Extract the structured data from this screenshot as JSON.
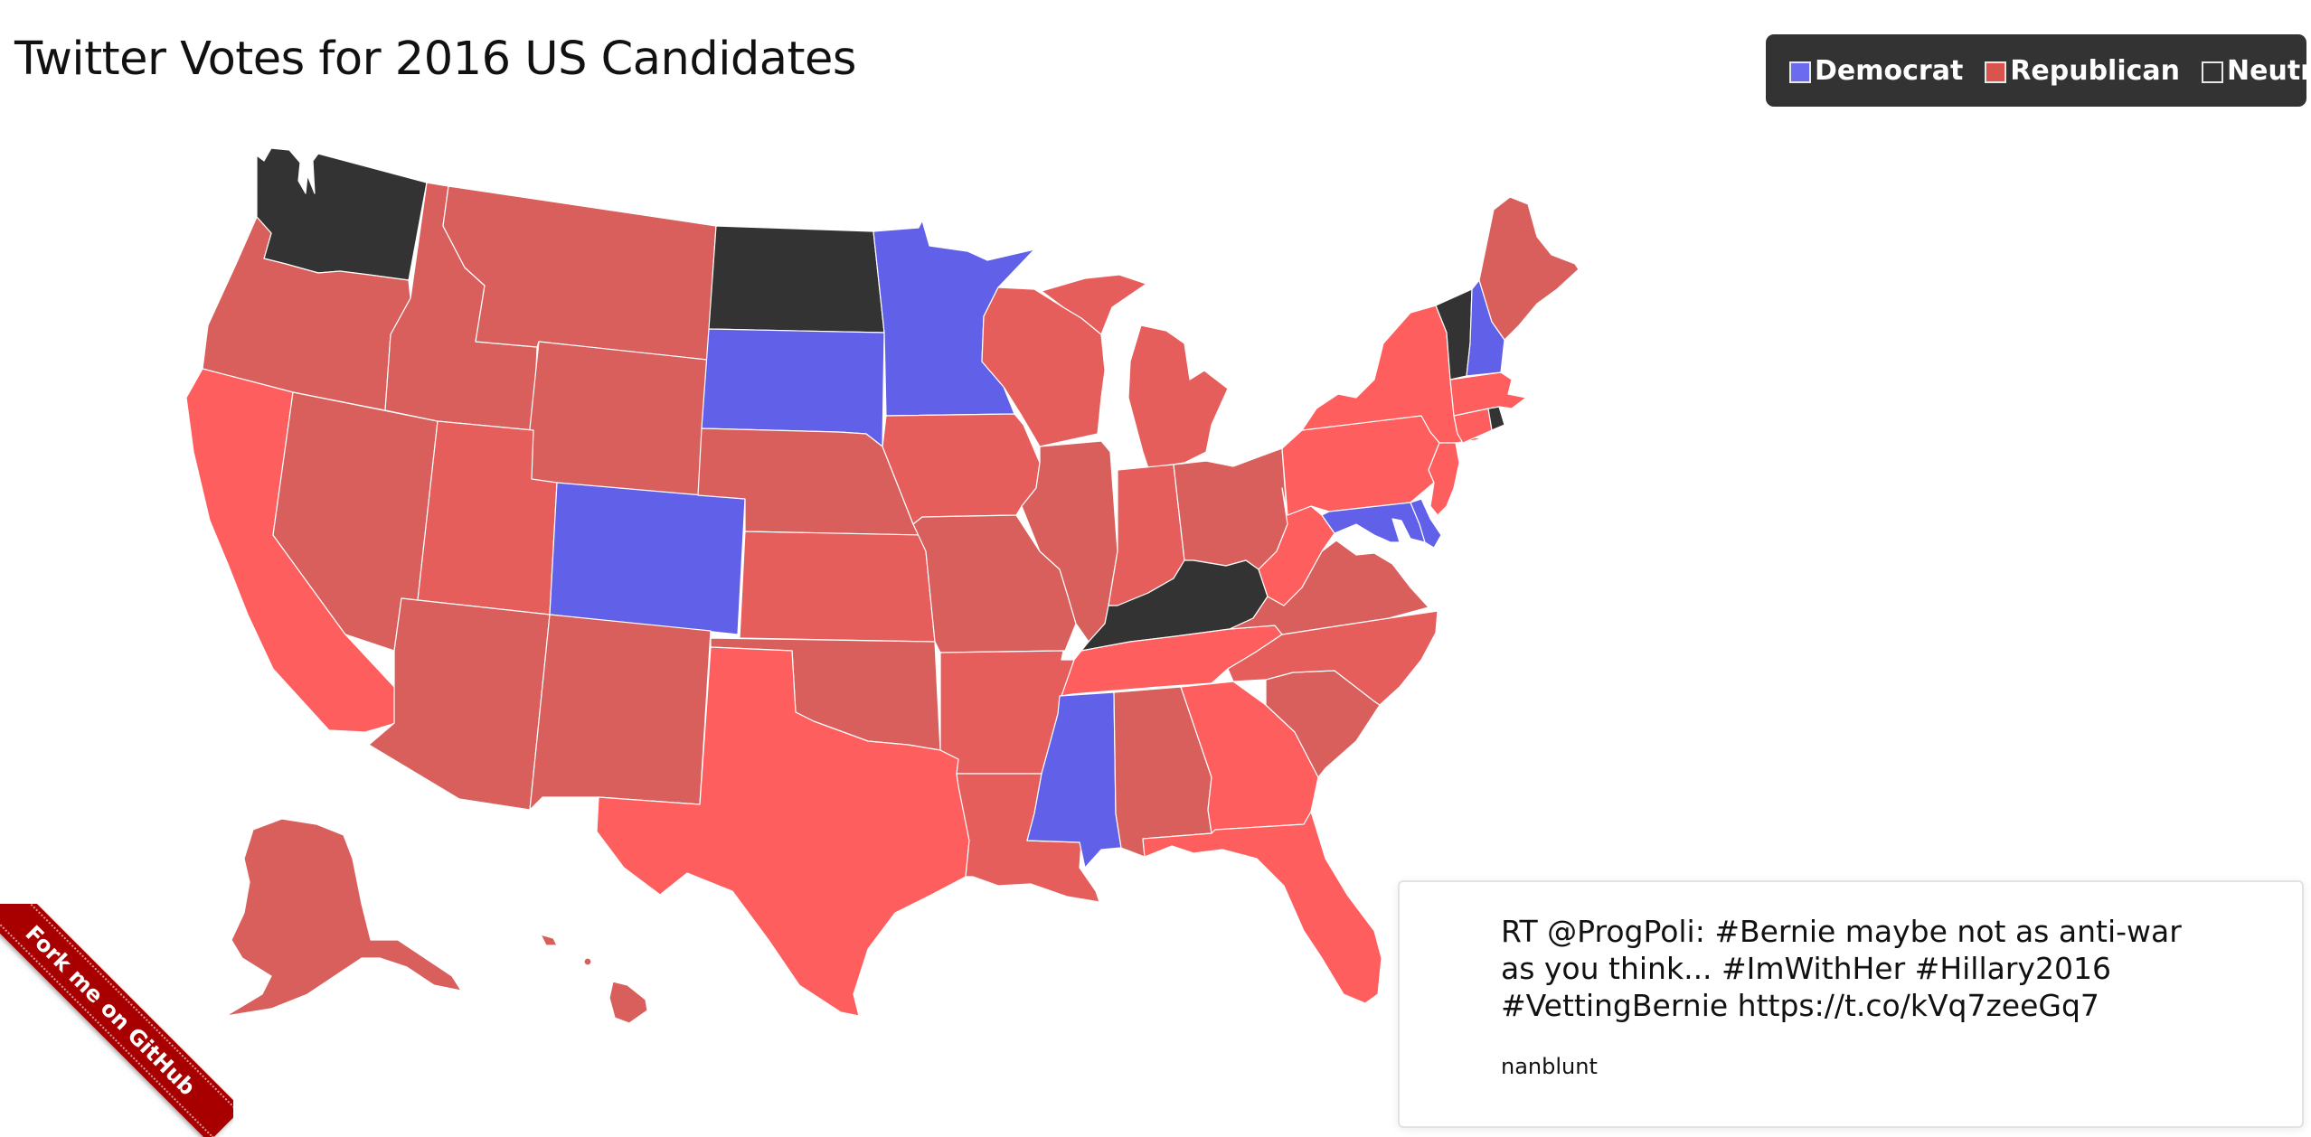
{
  "title": "Twitter Votes for 2016 US Candidates",
  "legend": {
    "items": [
      {
        "label": "Democrat",
        "color": "#6b6bf0"
      },
      {
        "label": "Republican",
        "color": "#d9534f"
      },
      {
        "label": "Neutral",
        "color": "#333333"
      }
    ]
  },
  "colors": {
    "democrat": "#6060e8",
    "republican_dark": "#d95f5c",
    "republican_mid": "#e55e5c",
    "republican_bright": "#ff5e5e",
    "neutral": "#333333"
  },
  "map": {
    "states": [
      {
        "name": "washington",
        "party": "neutral"
      },
      {
        "name": "oregon",
        "party": "republican"
      },
      {
        "name": "california",
        "party": "republican"
      },
      {
        "name": "nevada",
        "party": "republican"
      },
      {
        "name": "idaho",
        "party": "republican"
      },
      {
        "name": "montana",
        "party": "republican"
      },
      {
        "name": "wyoming",
        "party": "republican"
      },
      {
        "name": "utah",
        "party": "republican"
      },
      {
        "name": "arizona",
        "party": "republican"
      },
      {
        "name": "colorado",
        "party": "democrat"
      },
      {
        "name": "new-mexico",
        "party": "republican"
      },
      {
        "name": "north-dakota",
        "party": "neutral"
      },
      {
        "name": "south-dakota",
        "party": "democrat"
      },
      {
        "name": "nebraska",
        "party": "republican"
      },
      {
        "name": "kansas",
        "party": "republican"
      },
      {
        "name": "oklahoma",
        "party": "republican"
      },
      {
        "name": "texas",
        "party": "republican"
      },
      {
        "name": "minnesota",
        "party": "democrat"
      },
      {
        "name": "iowa",
        "party": "republican"
      },
      {
        "name": "missouri",
        "party": "republican"
      },
      {
        "name": "arkansas",
        "party": "republican"
      },
      {
        "name": "louisiana",
        "party": "republican"
      },
      {
        "name": "wisconsin",
        "party": "republican"
      },
      {
        "name": "illinois",
        "party": "republican"
      },
      {
        "name": "michigan",
        "party": "republican"
      },
      {
        "name": "indiana",
        "party": "republican"
      },
      {
        "name": "ohio",
        "party": "republican"
      },
      {
        "name": "kentucky",
        "party": "neutral"
      },
      {
        "name": "tennessee",
        "party": "republican"
      },
      {
        "name": "mississippi",
        "party": "democrat"
      },
      {
        "name": "alabama",
        "party": "republican"
      },
      {
        "name": "georgia",
        "party": "republican"
      },
      {
        "name": "florida",
        "party": "republican"
      },
      {
        "name": "south-carolina",
        "party": "republican"
      },
      {
        "name": "north-carolina",
        "party": "republican"
      },
      {
        "name": "virginia",
        "party": "republican"
      },
      {
        "name": "west-virginia",
        "party": "republican"
      },
      {
        "name": "pennsylvania",
        "party": "republican"
      },
      {
        "name": "new-york",
        "party": "republican"
      },
      {
        "name": "maryland",
        "party": "democrat"
      },
      {
        "name": "delaware",
        "party": "democrat"
      },
      {
        "name": "new-jersey",
        "party": "republican"
      },
      {
        "name": "connecticut",
        "party": "republican"
      },
      {
        "name": "rhode-island",
        "party": "neutral"
      },
      {
        "name": "massachusetts",
        "party": "republican"
      },
      {
        "name": "vermont",
        "party": "neutral"
      },
      {
        "name": "new-hampshire",
        "party": "democrat"
      },
      {
        "name": "maine",
        "party": "republican"
      },
      {
        "name": "alaska",
        "party": "republican"
      },
      {
        "name": "hawaii",
        "party": "republican"
      }
    ]
  },
  "tweet": {
    "text": "RT @ProgPoli: #Bernie maybe not as anti-war as you think... #ImWithHer #Hillary2016 #VettingBernie https://t.co/kVq7zeeGq7",
    "user": "nanblunt"
  },
  "ribbon": {
    "label": "Fork me on GitHub"
  }
}
